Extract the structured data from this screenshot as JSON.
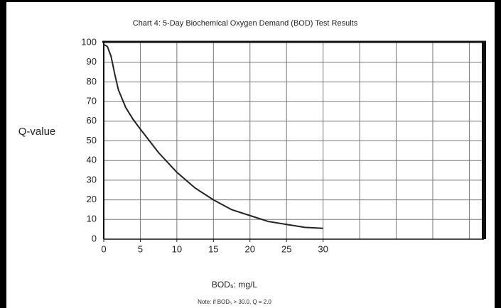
{
  "chart_data": {
    "type": "line",
    "title": "Chart 4: 5-Day Biochemical Oxygen Demand (BOD) Test Results",
    "y_label": "Q-value",
    "x_label": "BOD₅: mg/L",
    "note": "Note: if BOD₅ > 30.0, Q = 2.0",
    "x": [
      0,
      0.5,
      1,
      1.5,
      2,
      3,
      4,
      5,
      7.5,
      10,
      12.5,
      15,
      17.5,
      20,
      22.5,
      25,
      27.5,
      30
    ],
    "series": [
      {
        "color": "#222222",
        "values": [
          99,
          98,
          93,
          84,
          76,
          67,
          61,
          56,
          44,
          34,
          26,
          20,
          15,
          12,
          9,
          7.5,
          6,
          5.5
        ]
      }
    ],
    "xlim": [
      0,
      52
    ],
    "ylim": [
      0,
      100
    ],
    "xticks": [
      0,
      5,
      10,
      15,
      20,
      25,
      30
    ],
    "x_gridlines": [
      5,
      10,
      15,
      20,
      25,
      30,
      35,
      40,
      45,
      50
    ],
    "yticks": [
      0,
      10,
      20,
      30,
      40,
      50,
      60,
      70,
      80,
      90,
      100
    ],
    "grid": true
  }
}
